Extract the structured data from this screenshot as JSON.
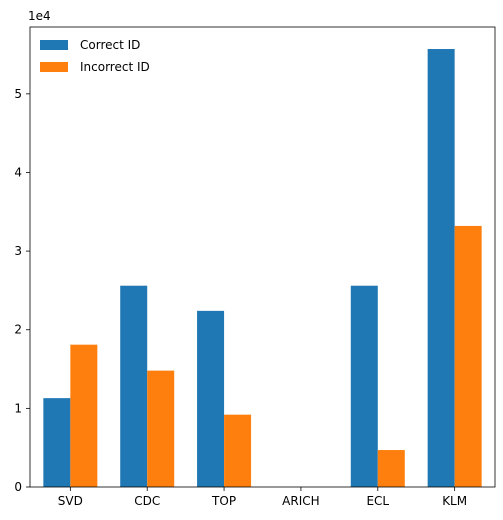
{
  "chart_data": {
    "type": "bar",
    "categories": [
      "SVD",
      "CDC",
      "TOP",
      "ARICH",
      "ECL",
      "KLM"
    ],
    "series": [
      {
        "name": "Correct ID",
        "values": [
          11300,
          25600,
          22400,
          0,
          25600,
          55700
        ],
        "color": "#1f77b4"
      },
      {
        "name": "Incorrect ID",
        "values": [
          18100,
          14800,
          9200,
          0,
          4700,
          33200
        ],
        "color": "#ff7f0e"
      }
    ],
    "yticks": [
      0,
      1,
      2,
      3,
      4,
      5
    ],
    "y_scale_multiplier": 10000,
    "y_offset_text": "1e4",
    "ylim": [
      0,
      58500
    ],
    "title": "",
    "xlabel": "",
    "ylabel": "",
    "legend_position": "top-left",
    "grid": false
  }
}
